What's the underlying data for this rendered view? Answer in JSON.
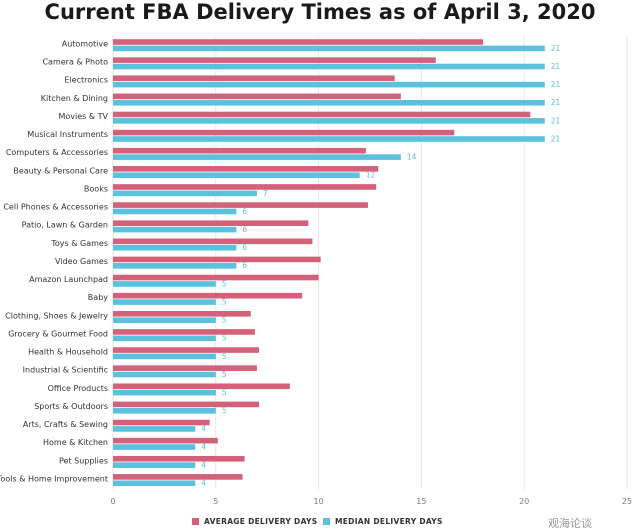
{
  "chart_data": {
    "type": "bar",
    "orientation": "horizontal",
    "title": "Current FBA Delivery Times as of April 3, 2020",
    "categories": [
      "Automotive",
      "Camera & Photo",
      "Electronics",
      "Kitchen & Dining",
      "Movies & TV",
      "Musical Instruments",
      "Computers & Accessories",
      "Beauty & Personal Care",
      "Books",
      "Cell Phones & Accessories",
      "Patio, Lawn & Garden",
      "Toys & Games",
      "Video Games",
      "Amazon Launchpad",
      "Baby",
      "Clothing, Shoes & Jewelry",
      "Grocery & Gourmet Food",
      "Health & Household",
      "Industrial & Scientific",
      "Office Products",
      "Sports & Outdoors",
      "Arts, Crafts & Sewing",
      "Home & Kitchen",
      "Pet Supplies",
      "Tools & Home Improvement"
    ],
    "series": [
      {
        "name": "AVERAGE DELIVERY DAYS",
        "color": "#d4607a",
        "values": [
          18,
          15.7,
          13.7,
          14,
          20.3,
          16.6,
          12.3,
          12.9,
          12.8,
          12.4,
          9.5,
          9.7,
          10.1,
          10,
          9.2,
          6.7,
          6.9,
          7.1,
          7,
          8.6,
          7.1,
          4.7,
          5.1,
          6.4,
          6.3
        ]
      },
      {
        "name": "MEDIAN DELIVERY DAYS",
        "color": "#5bc1dc",
        "values": [
          21,
          21,
          21,
          21,
          21,
          21,
          14,
          12,
          7,
          6,
          6,
          6,
          6,
          5,
          5,
          5,
          5,
          5,
          5,
          5,
          5,
          4,
          4,
          4,
          4
        ],
        "data_labels": [
          "21",
          "21",
          "21",
          "21",
          "21",
          "21",
          "14",
          "12",
          "7",
          "6",
          "6",
          "6",
          "6",
          "5",
          "5",
          "5",
          "5",
          "5",
          "5",
          "5",
          "5",
          "4",
          "4",
          "4",
          "4"
        ]
      }
    ],
    "xlim": [
      0,
      25
    ],
    "xticks": [
      "0",
      "5",
      "10",
      "15",
      "20",
      "25"
    ],
    "grid": true,
    "legend_position": "bottom"
  },
  "watermark": "观海论谈"
}
